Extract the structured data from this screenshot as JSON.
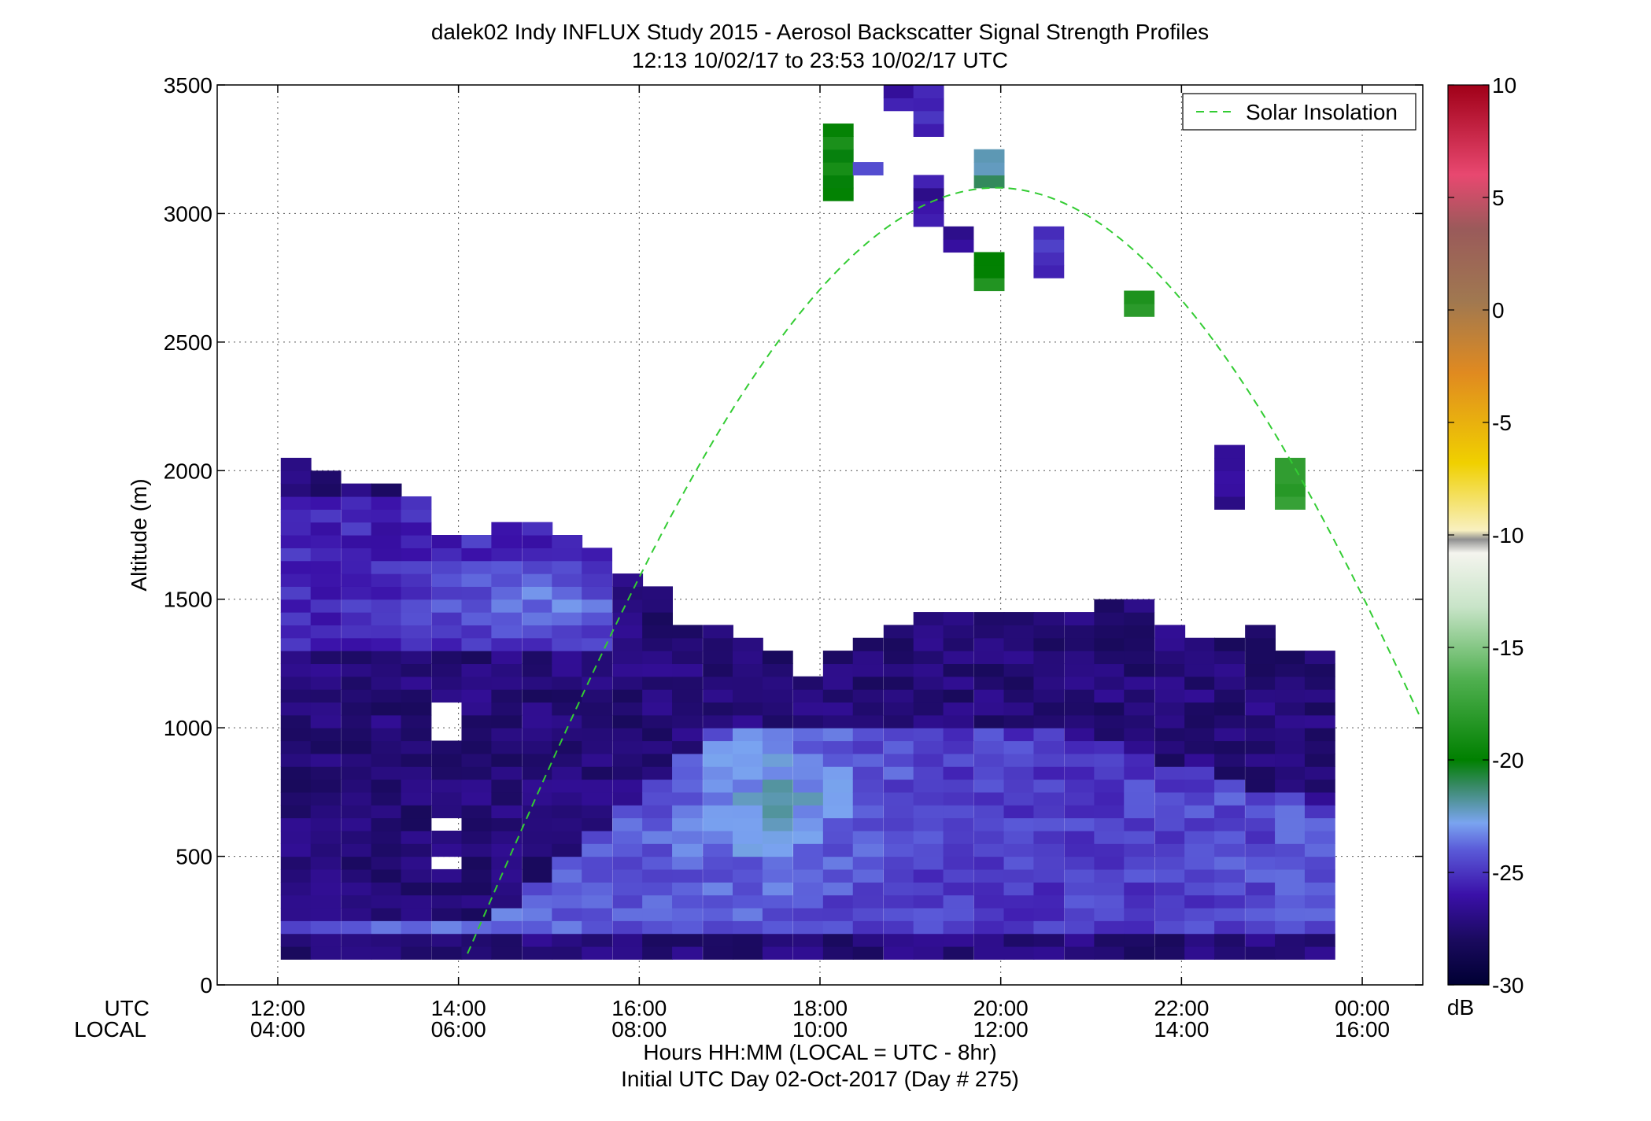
{
  "chart_data": {
    "type": "heatmap",
    "title": "dalek02 Indy INFLUX Study 2015 - Aerosol Backscatter Signal Strength Profiles",
    "subtitle": "12:13 10/02/17 to 23:53 10/02/17  UTC",
    "ylabel": "Altitude (m)",
    "xlabel_line1": "Hours HH:MM  (LOCAL = UTC - 8hr)",
    "xlabel_line2": "Initial UTC Day 02-Oct-2017 (Day # 275)",
    "x_row_labels": [
      "UTC",
      "LOCAL"
    ],
    "xlim_hours_utc": [
      11.33,
      24.67
    ],
    "ylim": [
      0,
      3500
    ],
    "x_ticks": [
      {
        "hour": 12,
        "utc": "12:00",
        "local": "04:00"
      },
      {
        "hour": 14,
        "utc": "14:00",
        "local": "06:00"
      },
      {
        "hour": 16,
        "utc": "16:00",
        "local": "08:00"
      },
      {
        "hour": 18,
        "utc": "18:00",
        "local": "10:00"
      },
      {
        "hour": 20,
        "utc": "20:00",
        "local": "12:00"
      },
      {
        "hour": 22,
        "utc": "22:00",
        "local": "14:00"
      },
      {
        "hour": 24,
        "utc": "00:00",
        "local": "16:00"
      }
    ],
    "y_ticks": [
      0,
      500,
      1000,
      1500,
      2000,
      2500,
      3000,
      3500
    ],
    "grid": true,
    "legend": {
      "placement": "top-right",
      "entries": [
        {
          "name": "Solar Insolation",
          "color": "#33cc33",
          "style": "dashed"
        }
      ]
    },
    "colorbar": {
      "label": "dB",
      "min": -30,
      "max": 10,
      "ticks": [
        10,
        5,
        0,
        -5,
        -10,
        -15,
        -20,
        -25,
        -30
      ]
    },
    "insolation_curve": {
      "peak_hour": 19.95,
      "peak_altitude": 3100,
      "half_width_hours": 6.0,
      "sunrise_hour": 14.1,
      "altitude_at_sunrise": 40
    },
    "profile_hour_step": 0.333,
    "profile_altitude_step": 50,
    "profiles": [
      {
        "hour": 12.2,
        "top": 2050,
        "gaps": []
      },
      {
        "hour": 12.53,
        "top": 2000,
        "gaps": []
      },
      {
        "hour": 12.87,
        "top": 1950,
        "gaps": []
      },
      {
        "hour": 13.2,
        "top": 1950,
        "gaps": []
      },
      {
        "hour": 13.53,
        "top": 1900,
        "gaps": []
      },
      {
        "hour": 13.87,
        "top": 1750,
        "gaps": [
          [
            950,
            1100
          ],
          [
            600,
            650
          ],
          [
            450,
            500
          ]
        ]
      },
      {
        "hour": 14.2,
        "top": 1750,
        "gaps": []
      },
      {
        "hour": 14.53,
        "top": 1800,
        "gaps": []
      },
      {
        "hour": 14.87,
        "top": 1800,
        "gaps": []
      },
      {
        "hour": 15.2,
        "top": 1750,
        "gaps": []
      },
      {
        "hour": 15.53,
        "top": 1700,
        "gaps": []
      },
      {
        "hour": 15.87,
        "top": 1600,
        "gaps": []
      },
      {
        "hour": 16.2,
        "top": 1550,
        "gaps": []
      },
      {
        "hour": 16.53,
        "top": 1400,
        "gaps": []
      },
      {
        "hour": 16.87,
        "top": 1400,
        "gaps": []
      },
      {
        "hour": 17.2,
        "top": 1350,
        "gaps": []
      },
      {
        "hour": 17.53,
        "top": 1300,
        "gaps": []
      },
      {
        "hour": 17.87,
        "top": 1200,
        "gaps": []
      },
      {
        "hour": 18.2,
        "top": 1300,
        "gaps": []
      },
      {
        "hour": 18.53,
        "top": 1350,
        "gaps": []
      },
      {
        "hour": 18.87,
        "top": 1400,
        "gaps": []
      },
      {
        "hour": 19.2,
        "top": 1450,
        "gaps": []
      },
      {
        "hour": 19.53,
        "top": 1450,
        "gaps": []
      },
      {
        "hour": 19.87,
        "top": 1450,
        "gaps": []
      },
      {
        "hour": 20.2,
        "top": 1450,
        "gaps": []
      },
      {
        "hour": 20.53,
        "top": 1450,
        "gaps": []
      },
      {
        "hour": 20.87,
        "top": 1450,
        "gaps": []
      },
      {
        "hour": 21.2,
        "top": 1500,
        "gaps": []
      },
      {
        "hour": 21.53,
        "top": 1500,
        "gaps": []
      },
      {
        "hour": 21.87,
        "top": 1400,
        "gaps": []
      },
      {
        "hour": 22.2,
        "top": 1350,
        "gaps": []
      },
      {
        "hour": 22.53,
        "top": 1350,
        "gaps": []
      },
      {
        "hour": 22.87,
        "top": 1400,
        "gaps": []
      },
      {
        "hour": 23.2,
        "top": 1300,
        "gaps": []
      },
      {
        "hour": 23.53,
        "top": 1300,
        "gaps": []
      }
    ],
    "aloft_cells": [
      {
        "hour": 18.2,
        "bottom": 3050,
        "top": 3350,
        "db": -19.5
      },
      {
        "hour": 18.53,
        "bottom": 3150,
        "top": 3200,
        "db": -24
      },
      {
        "hour": 18.87,
        "bottom": 3400,
        "top": 3500,
        "db": -26
      },
      {
        "hour": 19.2,
        "bottom": 3300,
        "top": 3500,
        "db": -25
      },
      {
        "hour": 19.2,
        "bottom": 2950,
        "top": 3150,
        "db": -26.5
      },
      {
        "hour": 19.53,
        "bottom": 2850,
        "top": 2950,
        "db": -27
      },
      {
        "hour": 19.87,
        "bottom": 3100,
        "top": 3250,
        "db": -21.5
      },
      {
        "hour": 19.87,
        "bottom": 2700,
        "top": 2850,
        "db": -19
      },
      {
        "hour": 20.53,
        "bottom": 2750,
        "top": 2950,
        "db": -25
      },
      {
        "hour": 21.53,
        "bottom": 2600,
        "top": 2700,
        "db": -19
      },
      {
        "hour": 22.53,
        "bottom": 1850,
        "top": 2100,
        "db": -26
      },
      {
        "hour": 23.2,
        "bottom": 1850,
        "top": 2050,
        "db": -18.5
      }
    ]
  }
}
